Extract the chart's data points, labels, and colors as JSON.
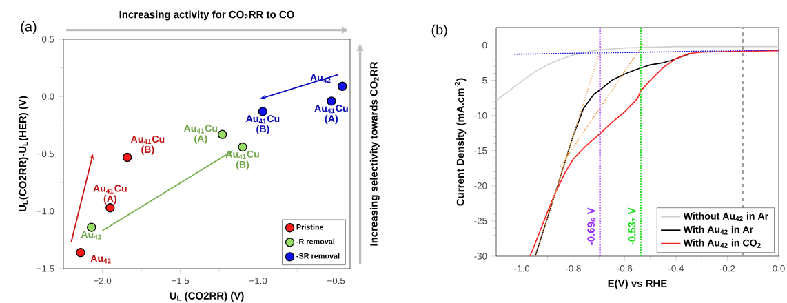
{
  "chart_data": [
    {
      "type": "scatter",
      "title": "(a)",
      "xlabel": "U$_{L}$ (CO2RR) (V)",
      "ylabel": "U$_{L}$(CO2RR)-U$_{L}$(HER) (V)",
      "xlim": [
        -2.25,
        -0.41
      ],
      "ylim": [
        -1.5,
        0.5
      ],
      "xticks": [
        {
          "value": -2.0,
          "label": "−2.0"
        },
        {
          "value": -1.5,
          "label": "−1.5"
        },
        {
          "value": -1.0,
          "label": "−1.0"
        },
        {
          "value": -0.5,
          "label": "−0.5"
        }
      ],
      "yticks": [
        {
          "value": -1.5,
          "label": "−1.5"
        },
        {
          "value": -1.0,
          "label": "−1.0"
        },
        {
          "value": -0.5,
          "label": "−0.5"
        },
        {
          "value": 0.0,
          "label": "0.0"
        },
        {
          "value": 0.5,
          "label": "0.5"
        }
      ],
      "marker": "circle",
      "legend": "bottom right",
      "series": [
        {
          "name": "Pristine",
          "color": "#ff1a1a",
          "x": [
            -2.14,
            -1.95,
            -1.84
          ],
          "values": [
            -1.36,
            -0.97,
            -0.53
          ]
        },
        {
          "name": "-R removal",
          "color": "#99dd66",
          "x": [
            -2.07,
            -1.23,
            -1.1
          ],
          "values": [
            -1.14,
            -0.33,
            -0.44
          ]
        },
        {
          "name": "-SR removal",
          "color": "#1010ee",
          "x": [
            -0.46,
            -0.53,
            -0.97
          ],
          "values": [
            0.09,
            -0.04,
            -0.13
          ]
        }
      ],
      "annotations": [
        "Increasing activity for CO$_{2}$RR to CO",
        "Increasing selectivity towards CO$_{2}$RR",
        {
          "text": "Au$_{42}$",
          "x": -2.14,
          "y": -1.36
        },
        {
          "text": "Au$_{41}$Cu (A)",
          "x": -1.95,
          "y": -0.97
        },
        {
          "text": "Au$_{41}$Cu (B)",
          "x": -1.84,
          "y": -0.53
        },
        {
          "text": "Au$_{42}$",
          "x": -2.07,
          "y": -1.14
        },
        {
          "text": "Au$_{41}$Cu (A)",
          "x": -1.23,
          "y": -0.33
        },
        {
          "text": "Au$_{41}$Cu (B)",
          "x": -1.1,
          "y": -0.44
        },
        {
          "text": "Au$_{42}$",
          "x": -0.46,
          "y": 0.09
        },
        {
          "text": "Au$_{41}$Cu (A)",
          "x": -0.53,
          "y": -0.04
        },
        {
          "text": "Au$_{41}$Cu (B)",
          "x": -0.97,
          "y": -0.13
        }
      ]
    },
    {
      "type": "line",
      "title": "(b)",
      "xlabel": "E(V) vs RHE",
      "ylabel": "Current Density (mA.cm$^{-2}$)",
      "xlim": [
        -1.1,
        0
      ],
      "ylim": [
        -30,
        2.5
      ],
      "xticks": [
        {
          "value": -1.0,
          "label": "-1.0"
        },
        {
          "value": -0.8,
          "label": "-0.8"
        },
        {
          "value": -0.6,
          "label": "-0.6"
        },
        {
          "value": -0.4,
          "label": "-0.4"
        },
        {
          "value": -0.2,
          "label": "-0.2"
        },
        {
          "value": 0,
          "label": "0.0"
        }
      ],
      "yticks": [
        -30,
        -25,
        -20,
        -15,
        -10,
        -5,
        0
      ],
      "legend": "bottom right",
      "series": [
        {
          "name": "Without Au$_{42}$ in Ar",
          "color": "#d0d0d0",
          "x": [
            -1.1,
            -1.05,
            -1.0,
            -0.95,
            -0.9,
            -0.85,
            -0.8,
            -0.75,
            -0.7,
            -0.6,
            -0.5,
            -0.4,
            -0.2,
            0
          ],
          "values": [
            -7.9,
            -6.5,
            -5.1,
            -3.8,
            -2.8,
            -2.0,
            -1.4,
            -1.0,
            -0.7,
            -0.4,
            -0.3,
            -0.2,
            -0.2,
            -0.2
          ]
        },
        {
          "name": "With Au$_{42}$ in Ar",
          "color": "#000000",
          "x": [
            -0.948,
            -0.9,
            -0.85,
            -0.8,
            -0.76,
            -0.72,
            -0.69,
            -0.65,
            -0.6,
            -0.55,
            -0.5,
            -0.45,
            -0.42,
            -0.4,
            -0.35
          ],
          "values": [
            -30,
            -24.5,
            -18.7,
            -12.9,
            -9.0,
            -7.0,
            -6.2,
            -5.0,
            -4.1,
            -3.4,
            -2.8,
            -2.5,
            -2.2,
            -1.9,
            -1.3
          ]
        },
        {
          "name": "With Au$_{42}$ in CO$_{2}$",
          "color": "#ff2020",
          "x": [
            -0.968,
            -0.93,
            -0.9,
            -0.87,
            -0.83,
            -0.8,
            -0.75,
            -0.69,
            -0.65,
            -0.6,
            -0.55,
            -0.537,
            -0.5,
            -0.45,
            -0.4,
            -0.35,
            -0.3,
            -0.2,
            0
          ],
          "values": [
            -30,
            -26.5,
            -23.7,
            -21.0,
            -18.0,
            -16.2,
            -14.3,
            -12.4,
            -11.0,
            -9.5,
            -7.6,
            -6.5,
            -5.0,
            -3.2,
            -1.9,
            -1.2,
            -1.0,
            -0.9,
            -0.8
          ]
        },
        {
          "color": "#1a1aee",
          "line_style": "dotted",
          "x": [
            -1.03,
            0
          ],
          "values": [
            -1.3,
            -0.7
          ]
        },
        {
          "color": "#f0a050",
          "line_style": "dotted",
          "x": [
            -0.948,
            -0.69
          ],
          "values": [
            -30,
            -0.2
          ]
        },
        {
          "color": "#f0a050",
          "line_style": "dotted",
          "x": [
            -0.851,
            -0.523
          ],
          "values": [
            -17.3,
            0.4
          ]
        }
      ],
      "ref_lines": [
        {
          "axis": "x",
          "value": -0.696,
          "label": "-0.69$_{6}$ V",
          "color": "#9b30ff",
          "line_style": "dotted"
        },
        {
          "axis": "x",
          "value": -0.537,
          "label": "-0.53$_{7}$ V",
          "color": "#22dd22",
          "line_style": "dotted"
        },
        {
          "axis": "x",
          "value": -0.14,
          "color": "#999999",
          "line_style": "dashed"
        }
      ]
    }
  ]
}
